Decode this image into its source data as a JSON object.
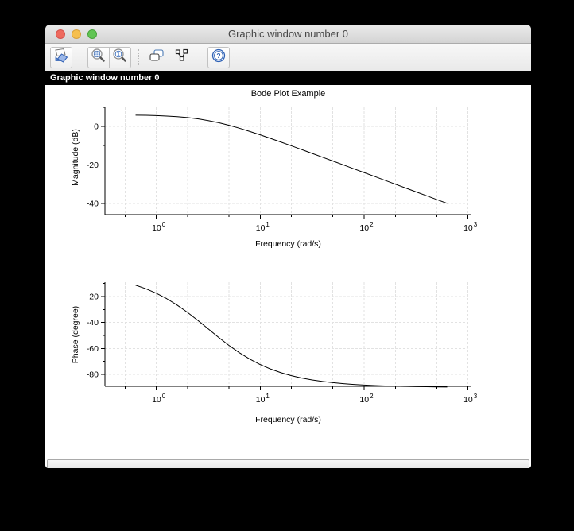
{
  "window": {
    "title": "Graphic window number 0",
    "figure_label": "Graphic window number 0",
    "status_text": "",
    "accent_colors": {
      "close": "#ee6a5e",
      "minimize": "#f5bf4f",
      "zoom": "#61c554"
    }
  },
  "toolbar": {
    "items": [
      {
        "name": "rotate-edit",
        "icon": "rotate-edit-icon"
      },
      {
        "name": "zoom-area",
        "icon": "zoom-area-icon"
      },
      {
        "name": "reset-view",
        "icon": "zoom-reset-icon"
      },
      {
        "name": "copy-figure",
        "icon": "copy-figure-icon"
      },
      {
        "name": "datatips",
        "icon": "datatips-icon"
      },
      {
        "name": "help",
        "icon": "help-icon"
      }
    ]
  },
  "chart_data": [
    {
      "type": "line",
      "title": "Bode Plot Example",
      "xlabel": "Frequency (rad/s)",
      "ylabel": "Magnitude (dB)",
      "xscale": "log",
      "grid": true,
      "line_color": "#000000",
      "xlim": [
        0.32,
        1080
      ],
      "ylim": [
        -45.8,
        9.9
      ],
      "x_major_ticks": [
        1,
        10,
        100,
        1000
      ],
      "x_minor_ticks": [
        0.5,
        2,
        5,
        20,
        50,
        200,
        500
      ],
      "y_major_ticks": [
        0,
        -20,
        -40
      ],
      "y_minor_ticks": [
        10,
        -10,
        -30
      ],
      "x": [
        0.631,
        0.794,
        1,
        1.259,
        1.585,
        1.995,
        2.512,
        3.162,
        3.981,
        5.012,
        6.31,
        7.943,
        10,
        12.59,
        15.85,
        19.95,
        25.12,
        31.62,
        39.81,
        50.12,
        63.1,
        79.43,
        100,
        125.9,
        158.5,
        199.5,
        251.2,
        316.2,
        398.1,
        501.2,
        631
      ],
      "y": [
        5.85,
        5.76,
        5.61,
        5.38,
        5.05,
        4.57,
        3.9,
        3.01,
        1.9,
        0.57,
        -0.95,
        -2.62,
        -4.39,
        -6.25,
        -8.15,
        -10.09,
        -12.05,
        -14.02,
        -16.01,
        -18.0,
        -19.99,
        -21.99,
        -23.98,
        -25.98,
        -27.98,
        -29.98,
        -31.98,
        -33.98,
        -35.98,
        -37.98,
        -39.98
      ]
    },
    {
      "type": "line",
      "title": "",
      "xlabel": "Frequency (rad/s)",
      "ylabel": "Phase (degree)",
      "xscale": "log",
      "grid": true,
      "line_color": "#000000",
      "xlim": [
        0.32,
        1080
      ],
      "ylim": [
        -89.2,
        -9.0
      ],
      "x_major_ticks": [
        1,
        10,
        100,
        1000
      ],
      "x_minor_ticks": [
        0.5,
        2,
        5,
        20,
        50,
        200,
        500
      ],
      "y_major_ticks": [
        -20,
        -40,
        -60,
        -80
      ],
      "y_minor_ticks": [
        -10,
        -30,
        -50,
        -70
      ],
      "x": [
        0.631,
        0.794,
        1,
        1.259,
        1.585,
        1.995,
        2.512,
        3.162,
        3.981,
        5.012,
        6.31,
        7.943,
        10,
        12.59,
        15.85,
        19.95,
        25.12,
        31.62,
        39.81,
        50.12,
        63.1,
        79.43,
        100,
        125.9,
        158.5,
        199.5,
        251.2,
        316.2,
        398.1,
        501.2,
        631
      ],
      "y": [
        -11.28,
        -14.1,
        -17.55,
        -21.7,
        -26.62,
        -32.25,
        -38.45,
        -45.0,
        -51.55,
        -57.75,
        -63.38,
        -68.3,
        -72.45,
        -75.9,
        -78.72,
        -81.0,
        -82.83,
        -84.29,
        -85.46,
        -86.39,
        -87.13,
        -87.72,
        -88.19,
        -88.56,
        -88.86,
        -89.09,
        -89.28,
        -89.43,
        -89.54,
        -89.64,
        -89.71
      ]
    }
  ]
}
